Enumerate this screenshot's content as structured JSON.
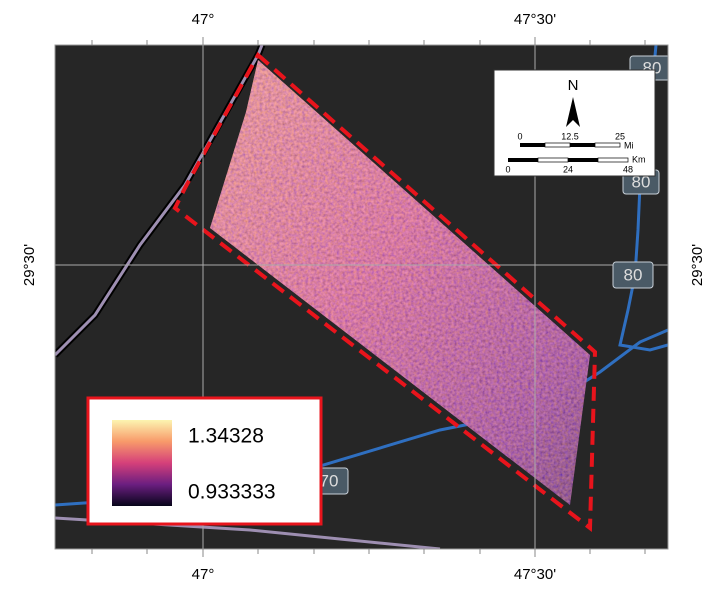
{
  "map": {
    "axis_labels": {
      "top": [
        "47°",
        "47°30'"
      ],
      "bottom": [
        "47°",
        "47°30'"
      ],
      "left": [
        "29°30'"
      ],
      "right": [
        "29°30'"
      ]
    },
    "north_arrow": "N",
    "scale_bar": {
      "miles": {
        "ticks": [
          "0",
          "12.5",
          "25"
        ],
        "unit": "Mi"
      },
      "kilometers": {
        "ticks": [
          "0",
          "24",
          "48"
        ],
        "unit": "Km"
      }
    },
    "road_shields": [
      "80",
      "80",
      "80",
      "70"
    ],
    "legend": {
      "max": "1.34328",
      "min": "0.933333"
    }
  }
}
